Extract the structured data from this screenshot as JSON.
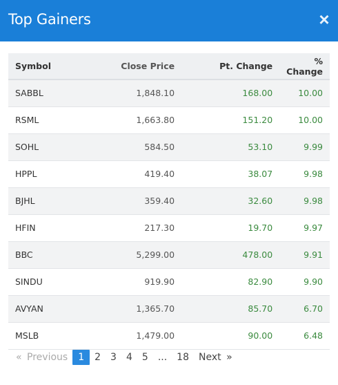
{
  "modal": {
    "title": "Top Gainers",
    "close_label": "×"
  },
  "table": {
    "headers": {
      "symbol": "Symbol",
      "close_price": "Close Price",
      "pt_change": "Pt. Change",
      "pct_change": "% Change"
    },
    "rows": [
      {
        "symbol": "SABBL",
        "close_price": "1,848.10",
        "pt_change": "168.00",
        "pct_change": "10.00"
      },
      {
        "symbol": "RSML",
        "close_price": "1,663.80",
        "pt_change": "151.20",
        "pct_change": "10.00"
      },
      {
        "symbol": "SOHL",
        "close_price": "584.50",
        "pt_change": "53.10",
        "pct_change": "9.99"
      },
      {
        "symbol": "HPPL",
        "close_price": "419.40",
        "pt_change": "38.07",
        "pct_change": "9.98"
      },
      {
        "symbol": "BJHL",
        "close_price": "359.40",
        "pt_change": "32.60",
        "pct_change": "9.98"
      },
      {
        "symbol": "HFIN",
        "close_price": "217.30",
        "pt_change": "19.70",
        "pct_change": "9.97"
      },
      {
        "symbol": "BBC",
        "close_price": "5,299.00",
        "pt_change": "478.00",
        "pct_change": "9.91"
      },
      {
        "symbol": "SINDU",
        "close_price": "919.90",
        "pt_change": "82.90",
        "pct_change": "9.90"
      },
      {
        "symbol": "AVYAN",
        "close_price": "1,365.70",
        "pt_change": "85.70",
        "pct_change": "6.70"
      },
      {
        "symbol": "MSLB",
        "close_price": "1,479.00",
        "pt_change": "90.00",
        "pct_change": "6.48"
      }
    ]
  },
  "pagination": {
    "prev_arrow": "«",
    "prev_label": "Previous",
    "pages": [
      "1",
      "2",
      "3",
      "4",
      "5"
    ],
    "ellipsis": "...",
    "last_page": "18",
    "next_label": "Next",
    "next_arrow": "»",
    "current_page": "1"
  },
  "colors": {
    "header_bg": "#1a7fd8",
    "positive": "#3a8a3e",
    "active_page": "#2a8adf"
  }
}
